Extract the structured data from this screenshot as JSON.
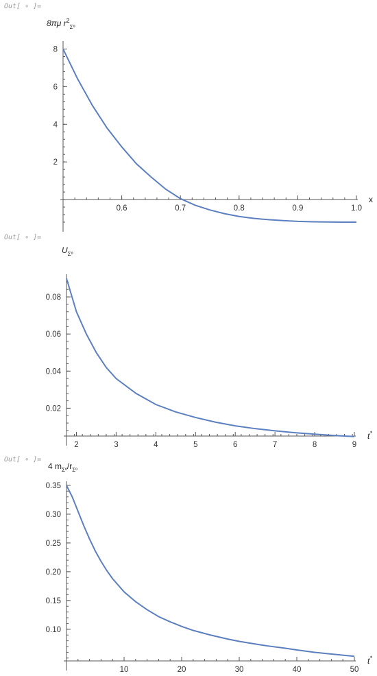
{
  "out_prompt": "Out[ ∘ ]=",
  "chart_data": [
    {
      "type": "line",
      "ylabel_parts": [
        "8πμ r",
        "2",
        "Σº"
      ],
      "xlabel": "x",
      "xlim": [
        0.5,
        1.0
      ],
      "ylim": [
        -1.2,
        8.2
      ],
      "x_axis_at_y": 0,
      "y_axis_at_x": 0.5,
      "xticks": [
        0.6,
        0.7,
        0.8,
        0.9,
        1.0
      ],
      "xtick_labels": [
        "0.6",
        "0.7",
        "0.8",
        "0.9",
        "1.0"
      ],
      "yticks": [
        2,
        4,
        6,
        8
      ],
      "ytick_labels": [
        "2",
        "4",
        "6",
        "8"
      ],
      "series": [
        {
          "color": "#5b7fbf",
          "x": [
            0.5,
            0.525,
            0.55,
            0.575,
            0.6,
            0.625,
            0.65,
            0.675,
            0.7,
            0.725,
            0.75,
            0.775,
            0.8,
            0.825,
            0.85,
            0.875,
            0.9,
            0.925,
            0.95,
            0.975,
            1.0
          ],
          "y": [
            8.0,
            6.4,
            5.0,
            3.8,
            2.8,
            1.9,
            1.2,
            0.55,
            0.05,
            -0.3,
            -0.55,
            -0.75,
            -0.9,
            -1.0,
            -1.07,
            -1.12,
            -1.16,
            -1.18,
            -1.19,
            -1.2,
            -1.2
          ]
        }
      ]
    },
    {
      "type": "line",
      "ylabel_parts": [
        "U",
        "Σº"
      ],
      "xlabel": "t*",
      "xlim": [
        1.75,
        9.0
      ],
      "ylim": [
        0.005,
        0.09
      ],
      "x_axis_at_y": 0.005,
      "y_axis_at_x": 1.75,
      "xticks": [
        2,
        3,
        4,
        5,
        6,
        7,
        8,
        9
      ],
      "xtick_labels": [
        "2",
        "3",
        "4",
        "5",
        "6",
        "7",
        "8",
        "9"
      ],
      "yticks": [
        0.02,
        0.04,
        0.06,
        0.08
      ],
      "ytick_labels": [
        "0.02",
        "0.04",
        "0.06",
        "0.08"
      ],
      "series": [
        {
          "color": "#5b7fbf",
          "x": [
            1.75,
            2.0,
            2.25,
            2.5,
            2.75,
            3.0,
            3.5,
            4.0,
            4.5,
            5.0,
            5.5,
            6.0,
            6.5,
            7.0,
            7.5,
            8.0,
            8.5,
            9.0
          ],
          "y": [
            0.09,
            0.072,
            0.06,
            0.05,
            0.042,
            0.036,
            0.028,
            0.022,
            0.018,
            0.015,
            0.0125,
            0.0105,
            0.009,
            0.0078,
            0.0068,
            0.006,
            0.0053,
            0.0047
          ]
        }
      ]
    },
    {
      "type": "line",
      "ylabel_parts": [
        "4 m",
        "Σº",
        "/r",
        "Σº"
      ],
      "xlabel": "t*",
      "xlim": [
        0,
        50
      ],
      "ylim": [
        0.045,
        0.35
      ],
      "x_axis_at_y": 0.045,
      "y_axis_at_x": 0,
      "xticks": [
        10,
        20,
        30,
        40,
        50
      ],
      "xtick_labels": [
        "10",
        "20",
        "30",
        "40",
        "50"
      ],
      "yticks": [
        0.1,
        0.15,
        0.2,
        0.25,
        0.3,
        0.35
      ],
      "ytick_labels": [
        "0.10",
        "0.15",
        "0.20",
        "0.25",
        "0.30",
        "0.35"
      ],
      "series": [
        {
          "color": "#5b7fbf",
          "x": [
            0,
            1,
            2,
            3,
            4,
            5,
            6,
            7,
            8,
            10,
            12,
            14,
            16,
            18,
            20,
            22,
            25,
            28,
            30,
            33,
            35,
            38,
            40,
            43,
            45,
            48,
            50
          ],
          "y": [
            0.35,
            0.33,
            0.305,
            0.28,
            0.257,
            0.236,
            0.218,
            0.202,
            0.188,
            0.165,
            0.148,
            0.134,
            0.122,
            0.113,
            0.105,
            0.098,
            0.09,
            0.083,
            0.079,
            0.074,
            0.071,
            0.067,
            0.064,
            0.06,
            0.058,
            0.055,
            0.053
          ]
        }
      ]
    }
  ]
}
